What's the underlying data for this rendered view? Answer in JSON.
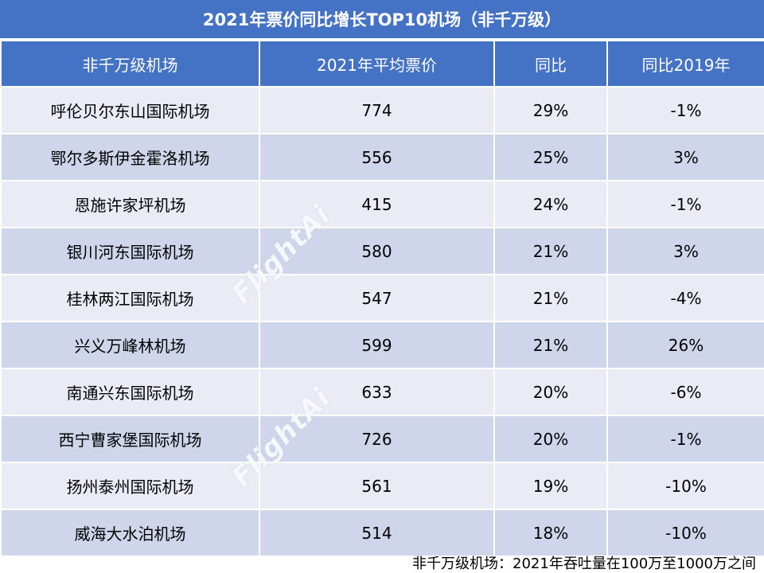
{
  "title": "2021年票价同比增长TOP10机场（非千万级）",
  "columns": [
    "非千万级机场",
    "2021年平均票价",
    "同比",
    "同比2019年"
  ],
  "rows": [
    [
      "呼伦贝尔东山国际机场",
      "774",
      "29%",
      "-1%"
    ],
    [
      "鄂尔多斯伊金霍洛机场",
      "556",
      "25%",
      "3%"
    ],
    [
      "恩施许家坪机场",
      "415",
      "24%",
      "-1%"
    ],
    [
      "银川河东国际机场",
      "580",
      "21%",
      "3%"
    ],
    [
      "桂林两江国际机场",
      "547",
      "21%",
      "-4%"
    ],
    [
      "兴义万峰林机场",
      "599",
      "21%",
      "26%"
    ],
    [
      "南通兴东国际机场",
      "633",
      "20%",
      "-6%"
    ],
    [
      "西宁曹家堡国际机场",
      "726",
      "20%",
      "-1%"
    ],
    [
      "扬州泰州国际机场",
      "561",
      "19%",
      "-10%"
    ],
    [
      "威海大水泊机场",
      "514",
      "18%",
      "-10%"
    ]
  ],
  "footnote": "非千万级机场：2021年吞吐量在100万至1000万之间",
  "watermark": "FlightAi",
  "colors": {
    "header": "#4472c4",
    "row_light": "#e9ebf5",
    "row_dark": "#cfd5ea"
  },
  "chart_data": {
    "type": "table",
    "title": "2021年票价同比增长TOP10机场（非千万级）",
    "columns": [
      "非千万级机场",
      "2021年平均票价",
      "同比",
      "同比2019年"
    ],
    "categories": [
      "呼伦贝尔东山国际机场",
      "鄂尔多斯伊金霍洛机场",
      "恩施许家坪机场",
      "银川河东国际机场",
      "桂林两江国际机场",
      "兴义万峰林机场",
      "南通兴东国际机场",
      "西宁曹家堡国际机场",
      "扬州泰州国际机场",
      "威海大水泊机场"
    ],
    "series": [
      {
        "name": "2021年平均票价",
        "values": [
          774,
          556,
          415,
          580,
          547,
          599,
          633,
          726,
          561,
          514
        ]
      },
      {
        "name": "同比",
        "values": [
          29,
          25,
          24,
          21,
          21,
          21,
          20,
          20,
          19,
          18
        ]
      },
      {
        "name": "同比2019年",
        "values": [
          -1,
          3,
          -1,
          3,
          -4,
          26,
          -6,
          -1,
          -10,
          -10
        ]
      }
    ]
  }
}
